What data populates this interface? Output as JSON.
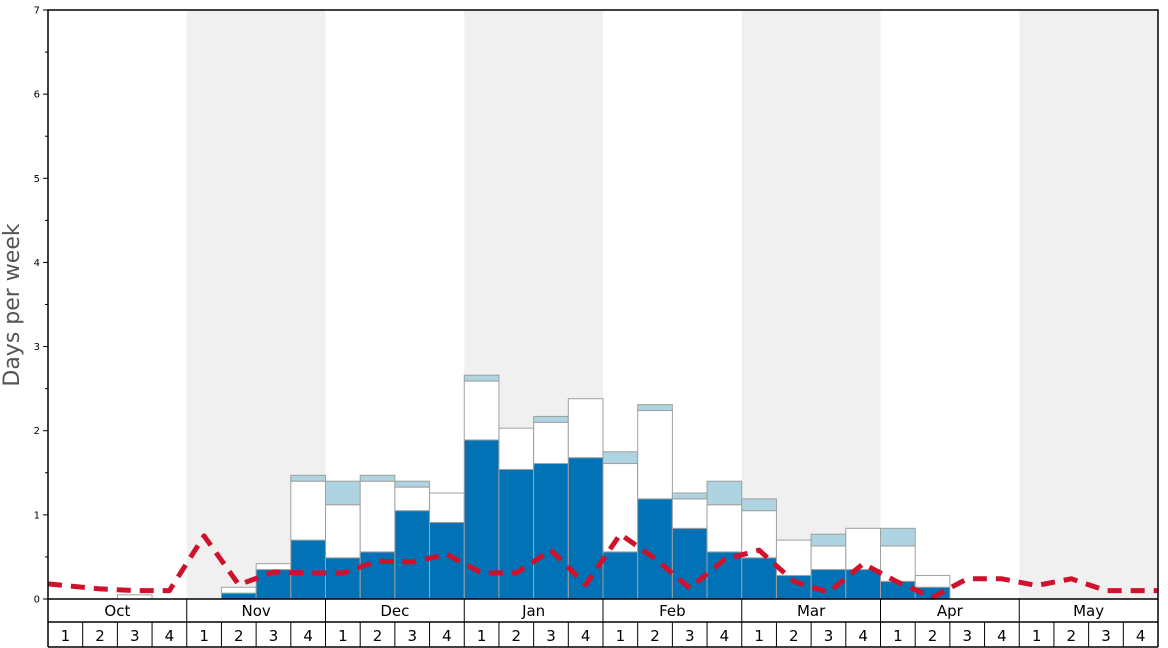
{
  "chart_data": {
    "type": "bar",
    "ylabel": "Days per week",
    "ylim": [
      0,
      7
    ],
    "yticks": [
      0,
      1,
      2,
      3,
      4,
      5,
      6,
      7
    ],
    "months": [
      "Oct",
      "Nov",
      "Dec",
      "Jan",
      "Feb",
      "Mar",
      "Apr",
      "May"
    ],
    "weeks_per_month": [
      1,
      2,
      3,
      4
    ],
    "stacked": true,
    "colors": {
      "dark": "#0072b5",
      "white": "#ffffff",
      "light": "#aed4e1",
      "line": "#d0112b",
      "band": "#f0f0f0",
      "bar_border": "#a0a0a0"
    },
    "series": [
      {
        "values": [
          0,
          0,
          0,
          0,
          0,
          0.07,
          0.35,
          0.7,
          0.49,
          0.56,
          1.05,
          0.91,
          1.89,
          1.54,
          1.61,
          1.68,
          0.56,
          1.19,
          0.84,
          0.56,
          0.49,
          0.28,
          0.35,
          0.35,
          0.21,
          0.14,
          0,
          0,
          0,
          0,
          0,
          0
        ]
      },
      {
        "values": [
          0,
          0,
          0.05,
          0,
          0,
          0.07,
          0.07,
          0.7,
          0.63,
          0.84,
          0.28,
          0.35,
          0.7,
          0.49,
          0.49,
          0.7,
          1.05,
          1.05,
          0.35,
          0.56,
          0.56,
          0.42,
          0.28,
          0.49,
          0.42,
          0.14,
          0,
          0,
          0,
          0,
          0,
          0
        ]
      },
      {
        "values": [
          0,
          0,
          0,
          0,
          0,
          0,
          0,
          0.07,
          0.28,
          0.07,
          0.07,
          0,
          0.07,
          0,
          0.07,
          0,
          0.14,
          0.07,
          0.07,
          0.28,
          0.14,
          0,
          0.14,
          0,
          0.21,
          0,
          0,
          0,
          0,
          0,
          0,
          0
        ]
      }
    ],
    "line": {
      "values": [
        0.18,
        0.12,
        0.1,
        0.1,
        0.75,
        0.17,
        0.32,
        0.31,
        0.31,
        0.45,
        0.44,
        0.53,
        0.31,
        0.31,
        0.58,
        0.17,
        0.77,
        0.48,
        0.13,
        0.47,
        0.58,
        0.21,
        0.08,
        0.42,
        0.2,
        0.02,
        0.24,
        0.24,
        0.16,
        0.24,
        0.1,
        0.1
      ]
    }
  }
}
